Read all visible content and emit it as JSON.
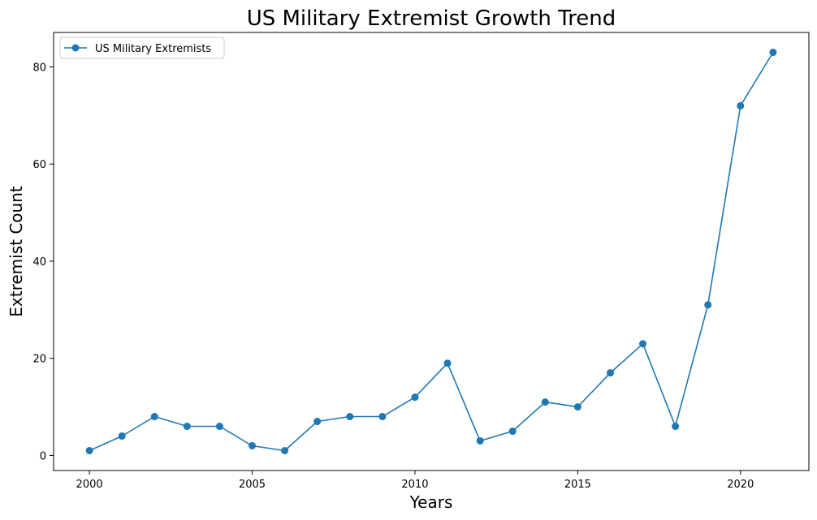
{
  "chart_data": {
    "type": "line",
    "title": "US Military Extremist Growth Trend",
    "xlabel": "Years",
    "ylabel": "Extremist Count",
    "x": [
      2000,
      2001,
      2002,
      2003,
      2004,
      2005,
      2006,
      2007,
      2008,
      2009,
      2010,
      2011,
      2012,
      2013,
      2014,
      2015,
      2016,
      2017,
      2018,
      2019,
      2020,
      2021
    ],
    "series": [
      {
        "name": "US Military Extremists",
        "values": [
          1,
          4,
          8,
          6,
          6,
          2,
          1,
          7,
          8,
          8,
          12,
          19,
          3,
          5,
          11,
          10,
          17,
          23,
          6,
          31,
          72,
          83
        ],
        "color": "#1f77b4",
        "marker": "circle"
      }
    ],
    "xlim": [
      1998.9,
      2022.1
    ],
    "ylim": [
      -3.1,
      87.1
    ],
    "xticks": [
      2000,
      2005,
      2010,
      2015,
      2020
    ],
    "yticks": [
      0,
      20,
      40,
      60,
      80
    ],
    "grid": false,
    "legend_position": "upper-left"
  }
}
